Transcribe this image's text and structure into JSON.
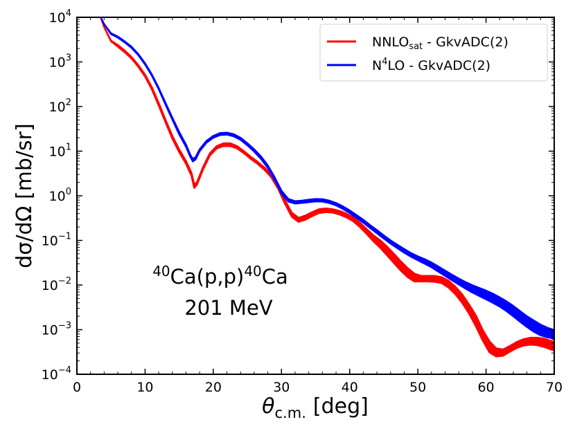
{
  "chart_data": {
    "type": "line",
    "xlabel": "θc.m. [deg]",
    "xlabel_main": "θ",
    "xlabel_sub": "c.m.",
    "xlabel_tail": "[deg]",
    "ylabel": "dσ/dΩ [mb/sr]",
    "xlim": [
      0,
      70
    ],
    "ylim": [
      0.0001,
      10000
    ],
    "yscale": "log",
    "x_ticks": [
      "0",
      "10",
      "20",
      "30",
      "40",
      "50",
      "60",
      "70"
    ],
    "y_tick_base": "10",
    "y_tick_exponents": [
      "4",
      "3",
      "2",
      "1",
      "0",
      "−1",
      "−2",
      "−3",
      "−4"
    ],
    "legend_position": "top-right",
    "annotation": {
      "line1_sup1": "40",
      "line1_mid": "Ca(p,p)",
      "line1_sup2": "40",
      "line1_end": "Ca",
      "line2": "201 MeV"
    },
    "series": [
      {
        "name": "NNLOsat - GkvADC(2)",
        "legend_main": "NNLO",
        "legend_sub": "sat",
        "legend_tail": " - GkvADC(2)",
        "color": "#ff0000",
        "band": true,
        "x": [
          3.5,
          4.0,
          5.0,
          6.0,
          7.0,
          8.0,
          9.0,
          10.0,
          11.0,
          12.0,
          13.0,
          14.0,
          15.0,
          16.0,
          16.8,
          17.2,
          17.6,
          18.5,
          19.5,
          20.5,
          21.5,
          22.5,
          23.5,
          24.5,
          25.5,
          26.5,
          27.5,
          28.5,
          29.5,
          30.5,
          31.5,
          32.5,
          33.5,
          34.5,
          35.5,
          36.5,
          37.5,
          38.5,
          39.5,
          40.5,
          41.5,
          42.5,
          43.5,
          44.5,
          45.5,
          46.5,
          47.5,
          48.5,
          49.5,
          50.5,
          51.5,
          52.5,
          53.5,
          54.5,
          55.5,
          56.5,
          57.5,
          58.5,
          59.5,
          60.5,
          61.5,
          62.5,
          63.5,
          64.5,
          65.5,
          66.5,
          67.5,
          68.5,
          69.5,
          70.0
        ],
        "upper": [
          10000,
          6000,
          3000,
          2400,
          1800,
          1300,
          850,
          520,
          270,
          120,
          50,
          22,
          11,
          6,
          3.3,
          1.8,
          2.0,
          4.4,
          9,
          13,
          15,
          15,
          13,
          10,
          7.5,
          5.8,
          4.3,
          3.0,
          1.7,
          0.8,
          0.42,
          0.32,
          0.36,
          0.43,
          0.5,
          0.52,
          0.5,
          0.46,
          0.4,
          0.33,
          0.25,
          0.18,
          0.13,
          0.1,
          0.072,
          0.05,
          0.034,
          0.024,
          0.018,
          0.016,
          0.016,
          0.016,
          0.015,
          0.0125,
          0.0092,
          0.0062,
          0.0037,
          0.0021,
          0.001,
          0.00055,
          0.00038,
          0.00036,
          0.00043,
          0.00053,
          0.00061,
          0.00066,
          0.00066,
          0.00063,
          0.00056,
          0.00052
        ],
        "lower": [
          10000,
          6000,
          2900,
          2200,
          1650,
          1200,
          780,
          470,
          240,
          105,
          44,
          19,
          9.5,
          5.2,
          2.8,
          1.5,
          1.75,
          3.9,
          8,
          11.5,
          13,
          13,
          11.5,
          9,
          6.7,
          5.2,
          3.8,
          2.6,
          1.45,
          0.67,
          0.34,
          0.26,
          0.29,
          0.35,
          0.41,
          0.43,
          0.42,
          0.38,
          0.33,
          0.27,
          0.2,
          0.14,
          0.095,
          0.068,
          0.046,
          0.031,
          0.021,
          0.015,
          0.012,
          0.012,
          0.012,
          0.0118,
          0.011,
          0.0088,
          0.0062,
          0.004,
          0.0023,
          0.0012,
          0.00058,
          0.00031,
          0.00025,
          0.00026,
          0.00032,
          0.00039,
          0.00044,
          0.00046,
          0.00045,
          0.00041,
          0.00036,
          0.00034
        ]
      },
      {
        "name": "N4LO - GkvADC(2)",
        "legend_pre": "N",
        "legend_sup": "4",
        "legend_tail": "LO - GkvADC(2)",
        "color": "#0000ff",
        "band": true,
        "x": [
          3.5,
          4.0,
          5.0,
          6.0,
          7.0,
          8.0,
          9.0,
          10.0,
          11.0,
          12.0,
          13.0,
          14.0,
          15.0,
          16.0,
          16.6,
          17.0,
          17.4,
          18.0,
          19.0,
          20.0,
          21.0,
          22.0,
          23.0,
          24.0,
          25.0,
          26.0,
          27.0,
          28.0,
          29.0,
          30.0,
          31.0,
          32.0,
          33.0,
          34.0,
          35.0,
          36.0,
          37.0,
          38.0,
          39.0,
          40.0,
          41.0,
          42.0,
          43.0,
          44.0,
          45.0,
          46.0,
          47.0,
          48.0,
          49.0,
          50.0,
          51.0,
          52.0,
          53.0,
          54.0,
          55.0,
          56.0,
          57.0,
          58.0,
          59.0,
          60.0,
          61.0,
          62.0,
          63.0,
          64.0,
          65.0,
          66.0,
          67.0,
          68.0,
          69.0,
          70.0
        ],
        "upper": [
          10000,
          7000,
          4400,
          3700,
          2900,
          2200,
          1500,
          930,
          520,
          260,
          120,
          56,
          27,
          14,
          8.5,
          6.7,
          7.3,
          11,
          17,
          22,
          25.5,
          26,
          24,
          20,
          15,
          11,
          7.6,
          4.8,
          2.6,
          1.3,
          0.85,
          0.76,
          0.78,
          0.82,
          0.85,
          0.84,
          0.78,
          0.69,
          0.58,
          0.47,
          0.37,
          0.29,
          0.22,
          0.17,
          0.13,
          0.1,
          0.08,
          0.064,
          0.052,
          0.044,
          0.038,
          0.032,
          0.026,
          0.021,
          0.017,
          0.014,
          0.0116,
          0.0099,
          0.0086,
          0.0075,
          0.0064,
          0.0053,
          0.0043,
          0.0034,
          0.0026,
          0.002,
          0.0016,
          0.0013,
          0.0011,
          0.00098
        ],
        "lower": [
          10000,
          7000,
          4200,
          3500,
          2750,
          2080,
          1420,
          880,
          490,
          245,
          110,
          51,
          24,
          12.5,
          7.6,
          5.9,
          6.5,
          10,
          15.5,
          20,
          23,
          23.5,
          21.5,
          18,
          13.5,
          9.8,
          6.7,
          4.2,
          2.3,
          1.13,
          0.74,
          0.67,
          0.69,
          0.72,
          0.75,
          0.74,
          0.69,
          0.61,
          0.51,
          0.41,
          0.32,
          0.25,
          0.19,
          0.145,
          0.11,
          0.085,
          0.067,
          0.053,
          0.043,
          0.036,
          0.03,
          0.025,
          0.02,
          0.016,
          0.0128,
          0.0103,
          0.0083,
          0.0068,
          0.0057,
          0.0048,
          0.004,
          0.0033,
          0.0026,
          0.002,
          0.0015,
          0.00115,
          0.0009,
          0.00075,
          0.00067,
          0.00063
        ]
      }
    ]
  }
}
